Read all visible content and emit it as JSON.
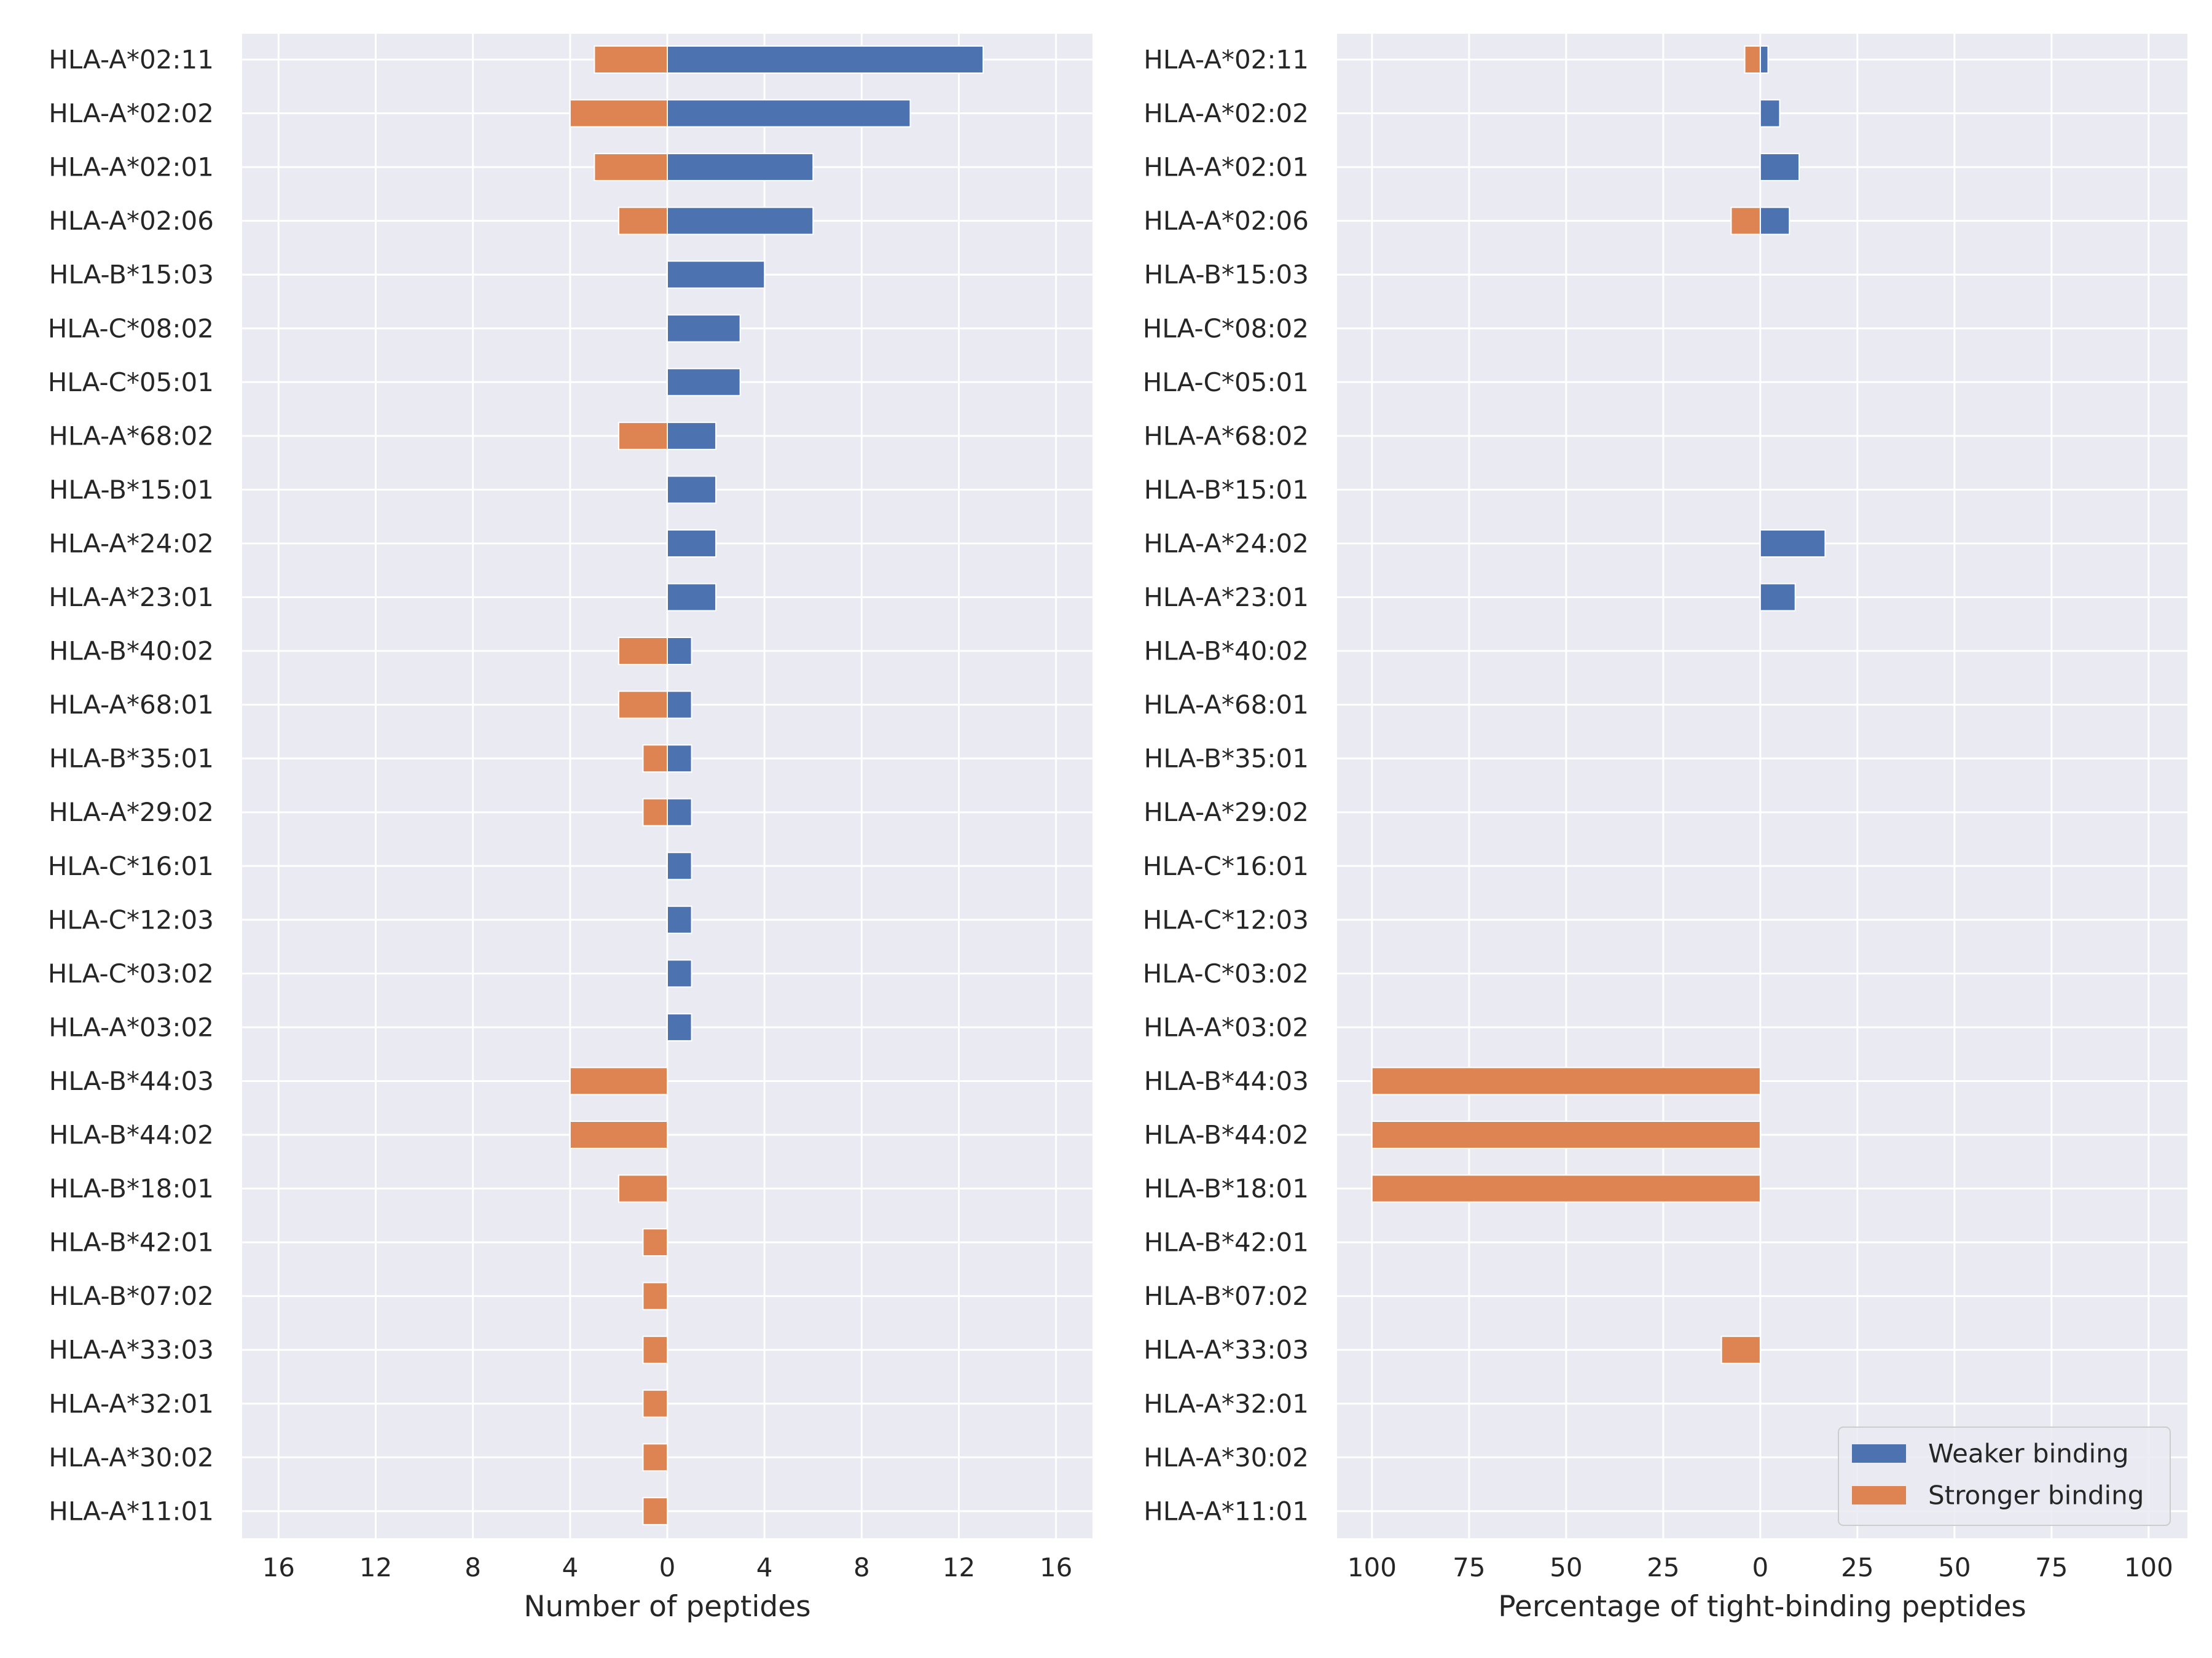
{
  "chart_data": [
    {
      "type": "bar",
      "orientation": "horizontal",
      "stacked_diverging": true,
      "xlabel": "Number of peptides",
      "xlim": [
        -17.5,
        17.5
      ],
      "xticks": [
        -16,
        -12,
        -8,
        -4,
        0,
        4,
        8,
        12,
        16
      ],
      "xtick_labels": [
        "16",
        "12",
        "8",
        "4",
        "0",
        "4",
        "8",
        "12",
        "16"
      ],
      "grid": true,
      "categories": [
        "HLA-A*02:11",
        "HLA-A*02:02",
        "HLA-A*02:01",
        "HLA-A*02:06",
        "HLA-B*15:03",
        "HLA-C*08:02",
        "HLA-C*05:01",
        "HLA-A*68:02",
        "HLA-B*15:01",
        "HLA-A*24:02",
        "HLA-A*23:01",
        "HLA-B*40:02",
        "HLA-A*68:01",
        "HLA-B*35:01",
        "HLA-A*29:02",
        "HLA-C*16:01",
        "HLA-C*12:03",
        "HLA-C*03:02",
        "HLA-A*03:02",
        "HLA-B*44:03",
        "HLA-B*44:02",
        "HLA-B*18:01",
        "HLA-B*42:01",
        "HLA-B*07:02",
        "HLA-A*33:03",
        "HLA-A*32:01",
        "HLA-A*30:02",
        "HLA-A*11:01"
      ],
      "series": [
        {
          "name": "Weaker binding",
          "values": [
            13,
            10,
            6,
            6,
            4,
            3,
            3,
            2,
            2,
            2,
            2,
            1,
            1,
            1,
            1,
            1,
            1,
            1,
            1,
            0,
            0,
            0,
            0,
            0,
            0,
            0,
            0,
            0
          ]
        },
        {
          "name": "Stronger binding",
          "values": [
            -3,
            -4,
            -3,
            -2,
            0,
            0,
            0,
            -2,
            0,
            0,
            0,
            -2,
            -2,
            -1,
            -1,
            0,
            0,
            0,
            0,
            -4,
            -4,
            -2,
            -1,
            -1,
            -1,
            -1,
            -1,
            -1
          ]
        }
      ]
    },
    {
      "type": "bar",
      "orientation": "horizontal",
      "stacked_diverging": true,
      "xlabel": "Percentage of tight-binding peptides",
      "xlim": [
        -109,
        110
      ],
      "xticks": [
        -100,
        -75,
        -50,
        -25,
        0,
        25,
        50,
        75,
        100
      ],
      "xtick_labels": [
        "100",
        "75",
        "50",
        "25",
        "0",
        "25",
        "50",
        "75",
        "100"
      ],
      "grid": true,
      "legend": "bottom-right",
      "categories": [
        "HLA-A*02:11",
        "HLA-A*02:02",
        "HLA-A*02:01",
        "HLA-A*02:06",
        "HLA-B*15:03",
        "HLA-C*08:02",
        "HLA-C*05:01",
        "HLA-A*68:02",
        "HLA-B*15:01",
        "HLA-A*24:02",
        "HLA-A*23:01",
        "HLA-B*40:02",
        "HLA-A*68:01",
        "HLA-B*35:01",
        "HLA-A*29:02",
        "HLA-C*16:01",
        "HLA-C*12:03",
        "HLA-C*03:02",
        "HLA-A*03:02",
        "HLA-B*44:03",
        "HLA-B*44:02",
        "HLA-B*18:01",
        "HLA-B*42:01",
        "HLA-B*07:02",
        "HLA-A*33:03",
        "HLA-A*32:01",
        "HLA-A*30:02",
        "HLA-A*11:01"
      ],
      "series": [
        {
          "name": "Weaker binding",
          "values": [
            2,
            5,
            10,
            7.5,
            0,
            0,
            0,
            0,
            0,
            16.7,
            9,
            0,
            0,
            0,
            0,
            0,
            0,
            0,
            0,
            0,
            0,
            0,
            0,
            0,
            0,
            0,
            0,
            0
          ]
        },
        {
          "name": "Stronger binding",
          "values": [
            -4,
            0,
            0,
            -7.5,
            0,
            0,
            0,
            0,
            0,
            0,
            0,
            0,
            0,
            0,
            0,
            0,
            0,
            0,
            0,
            -100,
            -100,
            -100,
            0,
            0,
            -10,
            0,
            0,
            0
          ]
        }
      ]
    }
  ],
  "colors": {
    "weaker": "#4c72b0",
    "stronger": "#dd8452",
    "axes_bg": "#eaeaf2",
    "grid": "#ffffff",
    "text": "#262626"
  }
}
